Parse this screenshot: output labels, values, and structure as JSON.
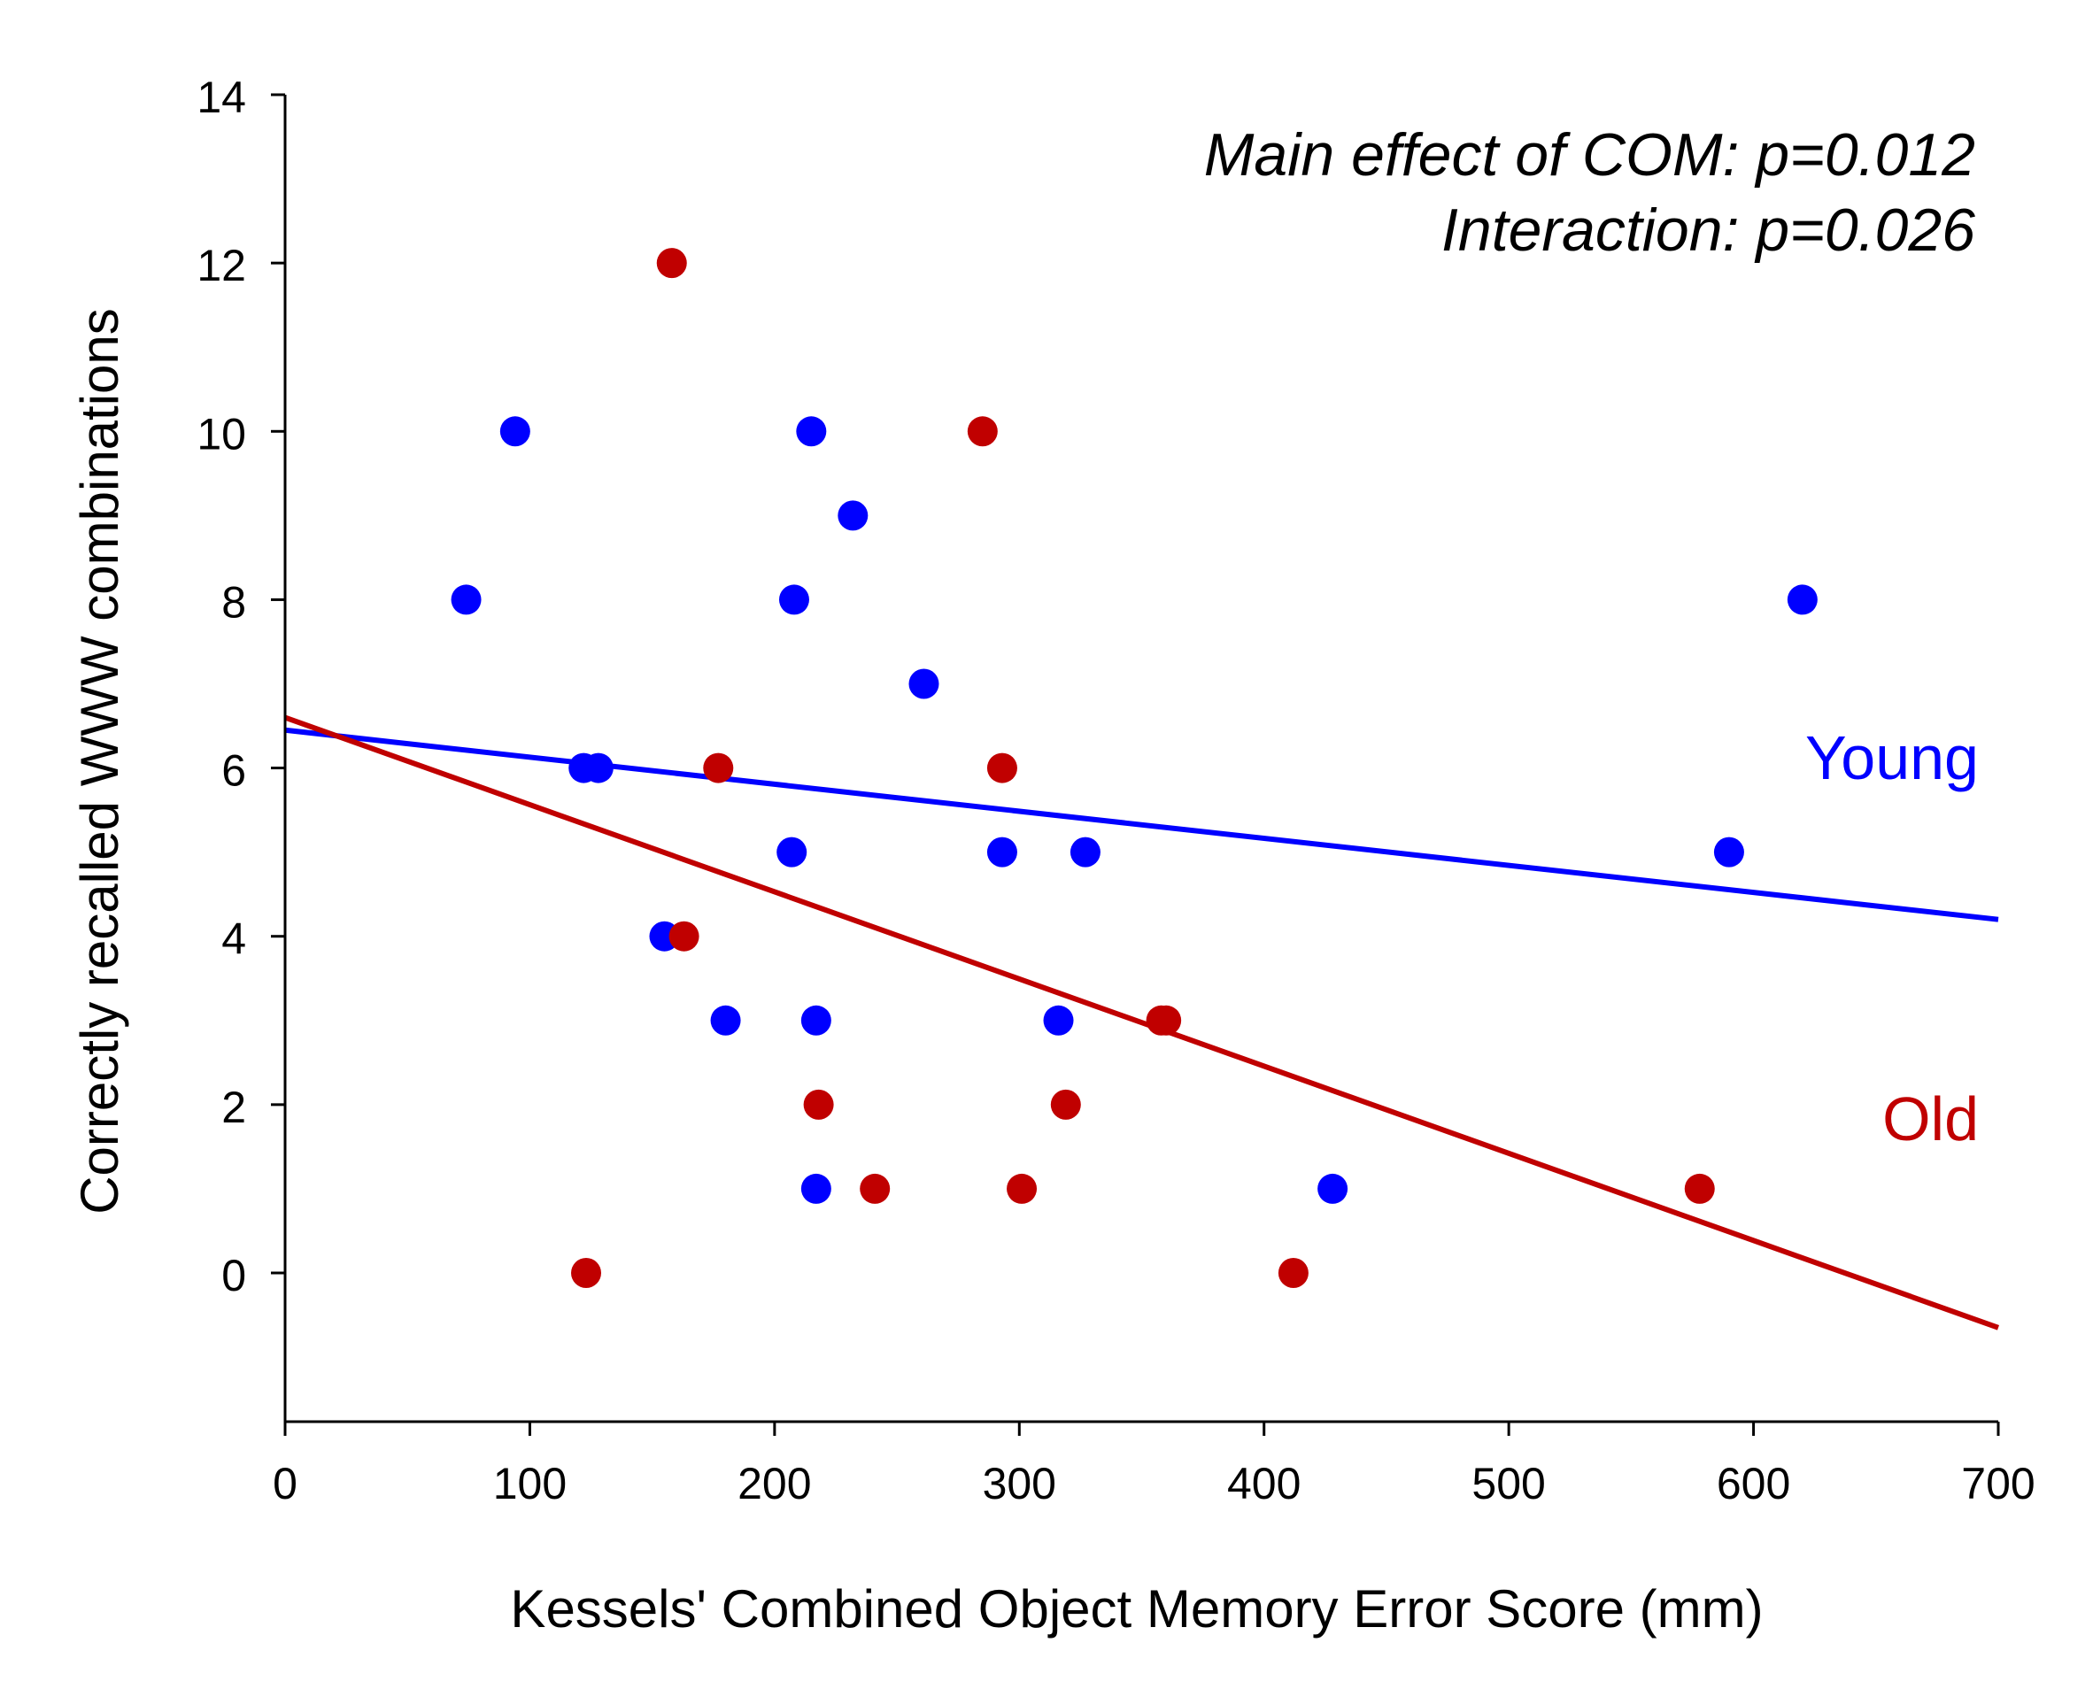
{
  "chart_data": {
    "type": "scatter",
    "xlabel": "Kessels' Combined Object Memory Error Score (mm)",
    "ylabel": "Correctly recalled WWW combinations",
    "xlim": [
      0,
      700
    ],
    "ylim": [
      -1.8,
      14
    ],
    "x_ticks": [
      0,
      100,
      200,
      300,
      400,
      500,
      600,
      700
    ],
    "y_ticks": [
      0,
      2,
      4,
      6,
      8,
      10,
      12,
      14
    ],
    "grid": false,
    "annotations": [
      "Main effect of COM: p=0.012",
      "Interaction: p=0.026"
    ],
    "series": [
      {
        "name": "Young",
        "color": "#0000ff",
        "label_position": "right, above line",
        "points": [
          {
            "x": 74,
            "y": 8
          },
          {
            "x": 94,
            "y": 10
          },
          {
            "x": 122,
            "y": 6
          },
          {
            "x": 128,
            "y": 6
          },
          {
            "x": 155,
            "y": 4
          },
          {
            "x": 180,
            "y": 3
          },
          {
            "x": 207,
            "y": 5
          },
          {
            "x": 208,
            "y": 8
          },
          {
            "x": 215,
            "y": 10
          },
          {
            "x": 217,
            "y": 3
          },
          {
            "x": 217,
            "y": 1
          },
          {
            "x": 232,
            "y": 9
          },
          {
            "x": 261,
            "y": 7
          },
          {
            "x": 293,
            "y": 5
          },
          {
            "x": 316,
            "y": 3
          },
          {
            "x": 327,
            "y": 5
          },
          {
            "x": 428,
            "y": 1
          },
          {
            "x": 590,
            "y": 5
          },
          {
            "x": 620,
            "y": 8
          }
        ],
        "fit": {
          "x": [
            0,
            700
          ],
          "y": [
            6.45,
            4.2
          ]
        }
      },
      {
        "name": "Old",
        "color": "#c00000",
        "label_position": "right, above line",
        "points": [
          {
            "x": 123,
            "y": 0
          },
          {
            "x": 158,
            "y": 12
          },
          {
            "x": 163,
            "y": 4
          },
          {
            "x": 177,
            "y": 6
          },
          {
            "x": 218,
            "y": 2
          },
          {
            "x": 241,
            "y": 1
          },
          {
            "x": 285,
            "y": 10
          },
          {
            "x": 293,
            "y": 6
          },
          {
            "x": 301,
            "y": 1
          },
          {
            "x": 319,
            "y": 2
          },
          {
            "x": 358,
            "y": 3
          },
          {
            "x": 360,
            "y": 3
          },
          {
            "x": 412,
            "y": 0
          },
          {
            "x": 578,
            "y": 1
          }
        ],
        "fit": {
          "x": [
            0,
            700
          ],
          "y": [
            6.6,
            -0.65
          ]
        }
      }
    ]
  }
}
